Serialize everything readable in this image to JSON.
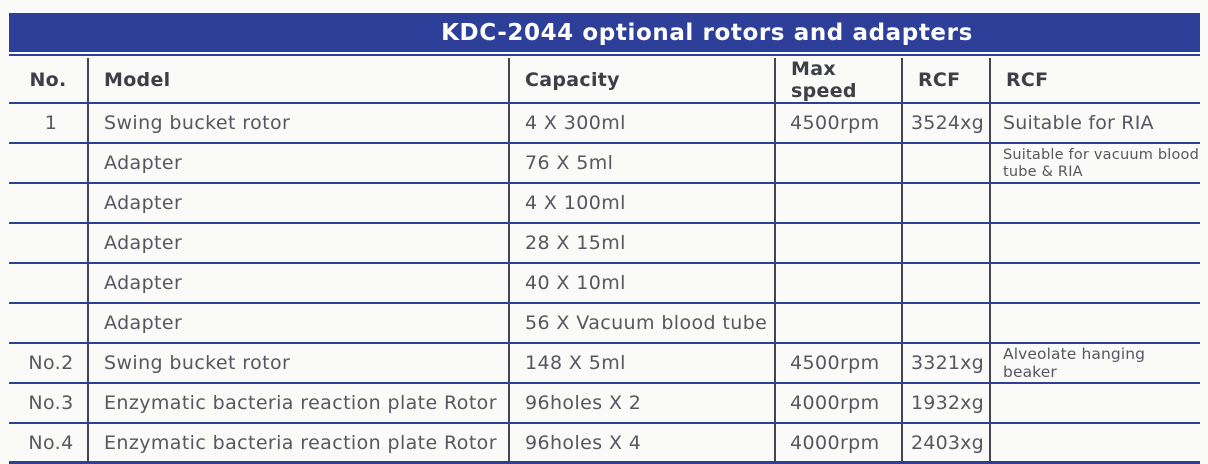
{
  "title": "KDC-2044 optional rotors and adapters",
  "colors": {
    "title_bar_blue": "#2e3f99",
    "row_line_blue": "#2f3f94",
    "column_line_gray": "#46464e",
    "header_text": "#3d3e48",
    "body_text": "#565760",
    "background": "#fafaf8"
  },
  "table": {
    "headers": [
      "No.",
      "Model",
      "Capacity",
      "Max speed",
      "RCF",
      "RCF"
    ],
    "rows": [
      {
        "no": "1",
        "model": "Swing bucket rotor",
        "capacity": "4 X 300ml",
        "max_speed": "4500rpm",
        "rcf": "3524xg",
        "remark": "Suitable for RIA"
      },
      {
        "no": "",
        "model": "Adapter",
        "capacity": "76 X 5ml",
        "max_speed": "",
        "rcf": "",
        "remark": "Suitable for vacuum blood tube & RIA"
      },
      {
        "no": "",
        "model": "Adapter",
        "capacity": "4 X 100ml",
        "max_speed": "",
        "rcf": "",
        "remark": ""
      },
      {
        "no": "",
        "model": "Adapter",
        "capacity": "28 X 15ml",
        "max_speed": "",
        "rcf": "",
        "remark": ""
      },
      {
        "no": "",
        "model": "Adapter",
        "capacity": "40 X 10ml",
        "max_speed": "",
        "rcf": "",
        "remark": ""
      },
      {
        "no": "",
        "model": "Adapter",
        "capacity": "56 X Vacuum blood tube",
        "max_speed": "",
        "rcf": "",
        "remark": ""
      },
      {
        "no": "No.2",
        "model": "Swing bucket rotor",
        "capacity": "148 X 5ml",
        "max_speed": "4500rpm",
        "rcf": "3321xg",
        "remark": "Alveolate hanging beaker"
      },
      {
        "no": "No.3",
        "model": "Enzymatic bacteria reaction plate Rotor",
        "capacity": "96holes X 2",
        "max_speed": "4000rpm",
        "rcf": "1932xg",
        "remark": ""
      },
      {
        "no": "No.4",
        "model": "Enzymatic bacteria reaction plate Rotor",
        "capacity": "96holes X 4",
        "max_speed": "4000rpm",
        "rcf": "2403xg",
        "remark": ""
      }
    ]
  }
}
